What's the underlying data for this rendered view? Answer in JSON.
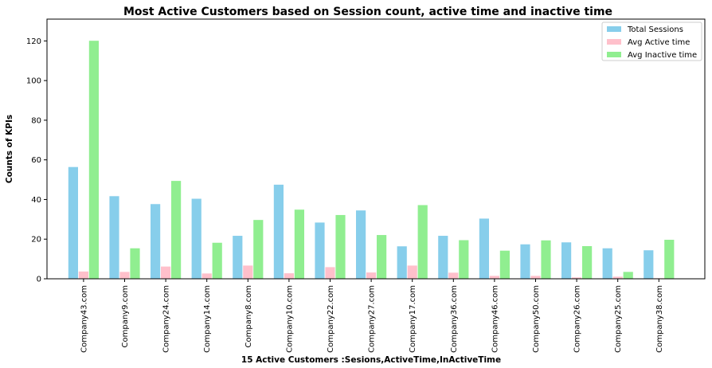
{
  "chart_data": {
    "type": "bar",
    "title": "Most Active Customers based on Session count, active time and inactive time",
    "xlabel": "15 Active Customers :Sesions,ActiveTime,InActiveTime",
    "ylabel": "Counts of KPIs",
    "ylim": [
      0,
      131
    ],
    "yticks": [
      0,
      20,
      40,
      60,
      80,
      100,
      120
    ],
    "legend_position": "top-right",
    "categories": [
      "Company43.com",
      "Company9.com",
      "Company24.com",
      "Company14.com",
      "Company8.com",
      "Company10.com",
      "Company22.com",
      "Company27.com",
      "Company17.com",
      "Company36.com",
      "Company46.com",
      "Company50.com",
      "Company26.com",
      "Company25.com",
      "Company38.com"
    ],
    "series": [
      {
        "name": "Total Sessions",
        "color": "#87ceeb",
        "values": [
          56.5,
          41.8,
          37.8,
          40.5,
          21.8,
          47.6,
          28.5,
          34.6,
          16.5,
          21.8,
          30.5,
          17.5,
          18.5,
          15.5,
          14.5
        ]
      },
      {
        "name": "Avg Active time",
        "color": "#ffc0cb",
        "values": [
          3.8,
          3.6,
          6.3,
          2.8,
          6.8,
          2.9,
          6.0,
          3.3,
          6.8,
          3.2,
          1.6,
          1.6,
          0.8,
          1.2,
          0.4
        ]
      },
      {
        "name": "Avg Inactive time",
        "color": "#90ee90",
        "values": [
          120.2,
          15.5,
          49.5,
          18.3,
          29.8,
          35.0,
          32.3,
          22.2,
          37.3,
          19.6,
          14.3,
          19.5,
          16.6,
          3.6,
          19.8
        ]
      }
    ]
  }
}
